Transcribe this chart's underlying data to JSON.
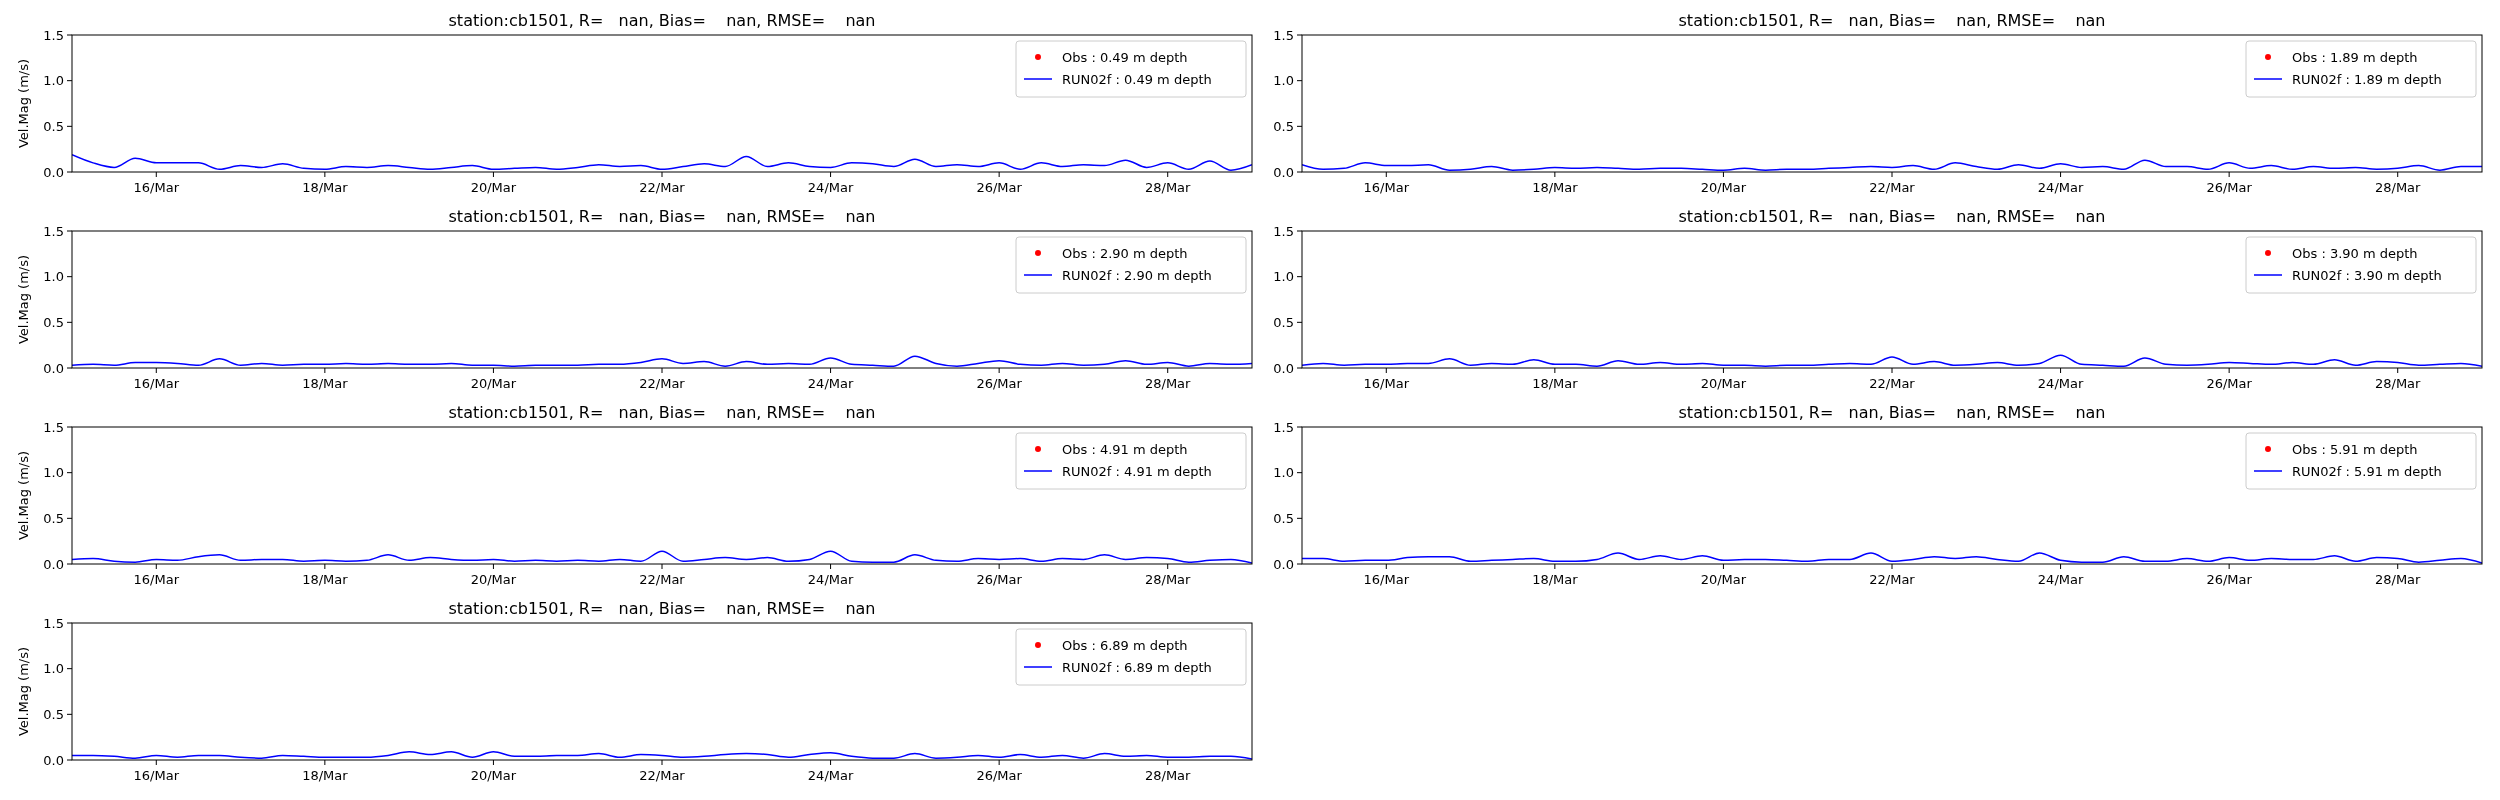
{
  "chart_data": [
    {
      "type": "line",
      "title": "station:cb1501, R=   nan, Bias=    nan, RMSE=    nan",
      "ylabel": "Vel.Mag (m/s)",
      "xlim": [
        "--03-15",
        "--03-29"
      ],
      "ylim": [
        0,
        1.5
      ],
      "yticks": [
        {
          "value": 0,
          "label": "0.0"
        },
        {
          "value": 0.5,
          "label": "0.5"
        },
        {
          "value": 1,
          "label": "1.0"
        },
        {
          "value": 1.5,
          "label": "1.5"
        }
      ],
      "xticks": [
        {
          "value": "--03-16",
          "label": "16/Mar"
        },
        {
          "value": "--03-18",
          "label": "18/Mar"
        },
        {
          "value": "--03-20",
          "label": "20/Mar"
        },
        {
          "value": "--03-22",
          "label": "22/Mar"
        },
        {
          "value": "--03-24",
          "label": "24/Mar"
        },
        {
          "value": "--03-26",
          "label": "26/Mar"
        },
        {
          "value": "--03-28",
          "label": "28/Mar"
        }
      ],
      "legend": "top right",
      "x": [
        "--03-15T00:00",
        "--03-15T06:00",
        "--03-15T12:00",
        "--03-15T18:00",
        "--03-16T00:00",
        "--03-16T06:00",
        "--03-16T12:00",
        "--03-16T18:00",
        "--03-17T00:00",
        "--03-17T06:00",
        "--03-17T12:00",
        "--03-17T18:00",
        "--03-18T00:00",
        "--03-18T06:00",
        "--03-18T12:00",
        "--03-18T18:00",
        "--03-19T00:00",
        "--03-19T06:00",
        "--03-19T12:00",
        "--03-19T18:00",
        "--03-20T00:00",
        "--03-20T06:00",
        "--03-20T12:00",
        "--03-20T18:00",
        "--03-21T00:00",
        "--03-21T06:00",
        "--03-21T12:00",
        "--03-21T18:00",
        "--03-22T00:00",
        "--03-22T06:00",
        "--03-22T12:00",
        "--03-22T18:00",
        "--03-23T00:00",
        "--03-23T06:00",
        "--03-23T12:00",
        "--03-23T18:00",
        "--03-24T00:00",
        "--03-24T06:00",
        "--03-24T12:00",
        "--03-24T18:00",
        "--03-25T00:00",
        "--03-25T06:00",
        "--03-25T12:00",
        "--03-25T18:00",
        "--03-26T00:00",
        "--03-26T06:00",
        "--03-26T12:00",
        "--03-26T18:00",
        "--03-27T00:00",
        "--03-27T06:00",
        "--03-27T12:00",
        "--03-27T18:00",
        "--03-28T00:00",
        "--03-28T06:00",
        "--03-28T12:00",
        "--03-28T18:00",
        "--03-29T00:00"
      ],
      "series": [
        {
          "name": "Obs : 0.49 m depth",
          "color": "#ff0000",
          "type": "scatter",
          "marker": "circle",
          "values": [
            null,
            null,
            null,
            null,
            null,
            null,
            null,
            null,
            null,
            null,
            null,
            null,
            null,
            null,
            null,
            null,
            null,
            null,
            null,
            null,
            null,
            null,
            null,
            null,
            null,
            null,
            null,
            null,
            null,
            null,
            null,
            null,
            null,
            null,
            null,
            null,
            null,
            null,
            null,
            null,
            null,
            null,
            null,
            null,
            null,
            null,
            null,
            null,
            null,
            null,
            null,
            null,
            null,
            null,
            null,
            null,
            null
          ]
        },
        {
          "name": "RUN02f : 0.49 m depth",
          "color": "#0000ff",
          "values": [
            0.19,
            0.1,
            0.05,
            0.15,
            0.1,
            0.1,
            0.1,
            0.03,
            0.07,
            0.05,
            0.09,
            0.04,
            0.03,
            0.06,
            0.05,
            0.07,
            0.05,
            0.03,
            0.05,
            0.07,
            0.03,
            0.04,
            0.05,
            0.03,
            0.05,
            0.08,
            0.06,
            0.07,
            0.03,
            0.06,
            0.09,
            0.06,
            0.17,
            0.06,
            0.1,
            0.06,
            0.05,
            0.1,
            0.09,
            0.06,
            0.14,
            0.06,
            0.08,
            0.06,
            0.1,
            0.03,
            0.1,
            0.06,
            0.08,
            0.07,
            0.13,
            0.05,
            0.1,
            0.03,
            0.12,
            0.02,
            0.08
          ]
        }
      ]
    },
    {
      "type": "line",
      "title": "station:cb1501, R=   nan, Bias=    nan, RMSE=    nan",
      "xlim": [
        "--03-15",
        "--03-29"
      ],
      "ylim": [
        0,
        1.5
      ],
      "yticks": [
        {
          "value": 0,
          "label": "0.0"
        },
        {
          "value": 0.5,
          "label": "0.5"
        },
        {
          "value": 1,
          "label": "1.0"
        },
        {
          "value": 1.5,
          "label": "1.5"
        }
      ],
      "xticks": [
        {
          "value": "--03-16",
          "label": "16/Mar"
        },
        {
          "value": "--03-18",
          "label": "18/Mar"
        },
        {
          "value": "--03-20",
          "label": "20/Mar"
        },
        {
          "value": "--03-22",
          "label": "22/Mar"
        },
        {
          "value": "--03-24",
          "label": "24/Mar"
        },
        {
          "value": "--03-26",
          "label": "26/Mar"
        },
        {
          "value": "--03-28",
          "label": "28/Mar"
        }
      ],
      "legend": "top right",
      "x": [
        "--03-15T00:00",
        "--03-15T06:00",
        "--03-15T12:00",
        "--03-15T18:00",
        "--03-16T00:00",
        "--03-16T06:00",
        "--03-16T12:00",
        "--03-16T18:00",
        "--03-17T00:00",
        "--03-17T06:00",
        "--03-17T12:00",
        "--03-17T18:00",
        "--03-18T00:00",
        "--03-18T06:00",
        "--03-18T12:00",
        "--03-18T18:00",
        "--03-19T00:00",
        "--03-19T06:00",
        "--03-19T12:00",
        "--03-19T18:00",
        "--03-20T00:00",
        "--03-20T06:00",
        "--03-20T12:00",
        "--03-20T18:00",
        "--03-21T00:00",
        "--03-21T06:00",
        "--03-21T12:00",
        "--03-21T18:00",
        "--03-22T00:00",
        "--03-22T06:00",
        "--03-22T12:00",
        "--03-22T18:00",
        "--03-23T00:00",
        "--03-23T06:00",
        "--03-23T12:00",
        "--03-23T18:00",
        "--03-24T00:00",
        "--03-24T06:00",
        "--03-24T12:00",
        "--03-24T18:00",
        "--03-25T00:00",
        "--03-25T06:00",
        "--03-25T12:00",
        "--03-25T18:00",
        "--03-26T00:00",
        "--03-26T06:00",
        "--03-26T12:00",
        "--03-26T18:00",
        "--03-27T00:00",
        "--03-27T06:00",
        "--03-27T12:00",
        "--03-27T18:00",
        "--03-28T00:00",
        "--03-28T06:00",
        "--03-28T12:00",
        "--03-28T18:00",
        "--03-29T00:00"
      ],
      "series": [
        {
          "name": "Obs : 1.89 m depth",
          "color": "#ff0000",
          "type": "scatter",
          "marker": "circle",
          "values": [
            null,
            null,
            null,
            null,
            null,
            null,
            null,
            null,
            null,
            null,
            null,
            null,
            null,
            null,
            null,
            null,
            null,
            null,
            null,
            null,
            null,
            null,
            null,
            null,
            null,
            null,
            null,
            null,
            null,
            null,
            null,
            null,
            null,
            null,
            null,
            null,
            null,
            null,
            null,
            null,
            null,
            null,
            null,
            null,
            null,
            null,
            null,
            null,
            null,
            null,
            null,
            null,
            null,
            null,
            null,
            null,
            null
          ]
        },
        {
          "name": "RUN02f : 1.89 m depth",
          "color": "#0000ff",
          "values": [
            0.08,
            0.03,
            0.04,
            0.1,
            0.07,
            0.07,
            0.08,
            0.02,
            0.03,
            0.06,
            0.02,
            0.03,
            0.05,
            0.04,
            0.05,
            0.04,
            0.03,
            0.04,
            0.04,
            0.03,
            0.02,
            0.04,
            0.02,
            0.03,
            0.03,
            0.04,
            0.05,
            0.06,
            0.05,
            0.07,
            0.03,
            0.1,
            0.06,
            0.03,
            0.08,
            0.04,
            0.09,
            0.05,
            0.06,
            0.03,
            0.13,
            0.06,
            0.06,
            0.03,
            0.1,
            0.04,
            0.07,
            0.03,
            0.06,
            0.04,
            0.05,
            0.03,
            0.04,
            0.07,
            0.02,
            0.06,
            0.06
          ]
        }
      ]
    },
    {
      "type": "line",
      "title": "station:cb1501, R=   nan, Bias=    nan, RMSE=    nan",
      "ylabel": "Vel.Mag (m/s)",
      "xlim": [
        "--03-15",
        "--03-29"
      ],
      "ylim": [
        0,
        1.5
      ],
      "yticks": [
        {
          "value": 0,
          "label": "0.0"
        },
        {
          "value": 0.5,
          "label": "0.5"
        },
        {
          "value": 1,
          "label": "1.0"
        },
        {
          "value": 1.5,
          "label": "1.5"
        }
      ],
      "xticks": [
        {
          "value": "--03-16",
          "label": "16/Mar"
        },
        {
          "value": "--03-18",
          "label": "18/Mar"
        },
        {
          "value": "--03-20",
          "label": "20/Mar"
        },
        {
          "value": "--03-22",
          "label": "22/Mar"
        },
        {
          "value": "--03-24",
          "label": "24/Mar"
        },
        {
          "value": "--03-26",
          "label": "26/Mar"
        },
        {
          "value": "--03-28",
          "label": "28/Mar"
        }
      ],
      "legend": "top right",
      "x": [
        "--03-15T00:00",
        "--03-15T06:00",
        "--03-15T12:00",
        "--03-15T18:00",
        "--03-16T00:00",
        "--03-16T06:00",
        "--03-16T12:00",
        "--03-16T18:00",
        "--03-17T00:00",
        "--03-17T06:00",
        "--03-17T12:00",
        "--03-17T18:00",
        "--03-18T00:00",
        "--03-18T06:00",
        "--03-18T12:00",
        "--03-18T18:00",
        "--03-19T00:00",
        "--03-19T06:00",
        "--03-19T12:00",
        "--03-19T18:00",
        "--03-20T00:00",
        "--03-20T06:00",
        "--03-20T12:00",
        "--03-20T18:00",
        "--03-21T00:00",
        "--03-21T06:00",
        "--03-21T12:00",
        "--03-21T18:00",
        "--03-22T00:00",
        "--03-22T06:00",
        "--03-22T12:00",
        "--03-22T18:00",
        "--03-23T00:00",
        "--03-23T06:00",
        "--03-23T12:00",
        "--03-23T18:00",
        "--03-24T00:00",
        "--03-24T06:00",
        "--03-24T12:00",
        "--03-24T18:00",
        "--03-25T00:00",
        "--03-25T06:00",
        "--03-25T12:00",
        "--03-25T18:00",
        "--03-26T00:00",
        "--03-26T06:00",
        "--03-26T12:00",
        "--03-26T18:00",
        "--03-27T00:00",
        "--03-27T06:00",
        "--03-27T12:00",
        "--03-27T18:00",
        "--03-28T00:00",
        "--03-28T06:00",
        "--03-28T12:00",
        "--03-28T18:00",
        "--03-29T00:00"
      ],
      "series": [
        {
          "name": "Obs : 2.90 m depth",
          "color": "#ff0000",
          "type": "scatter",
          "marker": "circle",
          "values": [
            null,
            null,
            null,
            null,
            null,
            null,
            null,
            null,
            null,
            null,
            null,
            null,
            null,
            null,
            null,
            null,
            null,
            null,
            null,
            null,
            null,
            null,
            null,
            null,
            null,
            null,
            null,
            null,
            null,
            null,
            null,
            null,
            null,
            null,
            null,
            null,
            null,
            null,
            null,
            null,
            null,
            null,
            null,
            null,
            null,
            null,
            null,
            null,
            null,
            null,
            null,
            null,
            null,
            null,
            null,
            null,
            null
          ]
        },
        {
          "name": "RUN02f : 2.90 m depth",
          "color": "#0000ff",
          "values": [
            0.03,
            0.04,
            0.03,
            0.06,
            0.06,
            0.05,
            0.03,
            0.1,
            0.03,
            0.05,
            0.03,
            0.04,
            0.04,
            0.05,
            0.04,
            0.05,
            0.04,
            0.04,
            0.05,
            0.03,
            0.03,
            0.02,
            0.03,
            0.03,
            0.03,
            0.04,
            0.04,
            0.06,
            0.1,
            0.05,
            0.07,
            0.02,
            0.07,
            0.04,
            0.05,
            0.04,
            0.11,
            0.04,
            0.03,
            0.02,
            0.13,
            0.05,
            0.02,
            0.05,
            0.08,
            0.04,
            0.03,
            0.05,
            0.03,
            0.04,
            0.08,
            0.04,
            0.06,
            0.02,
            0.05,
            0.04,
            0.05
          ]
        }
      ]
    },
    {
      "type": "line",
      "title": "station:cb1501, R=   nan, Bias=    nan, RMSE=    nan",
      "xlim": [
        "--03-15",
        "--03-29"
      ],
      "ylim": [
        0,
        1.5
      ],
      "yticks": [
        {
          "value": 0,
          "label": "0.0"
        },
        {
          "value": 0.5,
          "label": "0.5"
        },
        {
          "value": 1,
          "label": "1.0"
        },
        {
          "value": 1.5,
          "label": "1.5"
        }
      ],
      "xticks": [
        {
          "value": "--03-16",
          "label": "16/Mar"
        },
        {
          "value": "--03-18",
          "label": "18/Mar"
        },
        {
          "value": "--03-20",
          "label": "20/Mar"
        },
        {
          "value": "--03-22",
          "label": "22/Mar"
        },
        {
          "value": "--03-24",
          "label": "24/Mar"
        },
        {
          "value": "--03-26",
          "label": "26/Mar"
        },
        {
          "value": "--03-28",
          "label": "28/Mar"
        }
      ],
      "legend": "top right",
      "x": [
        "--03-15T00:00",
        "--03-15T06:00",
        "--03-15T12:00",
        "--03-15T18:00",
        "--03-16T00:00",
        "--03-16T06:00",
        "--03-16T12:00",
        "--03-16T18:00",
        "--03-17T00:00",
        "--03-17T06:00",
        "--03-17T12:00",
        "--03-17T18:00",
        "--03-18T00:00",
        "--03-18T06:00",
        "--03-18T12:00",
        "--03-18T18:00",
        "--03-19T00:00",
        "--03-19T06:00",
        "--03-19T12:00",
        "--03-19T18:00",
        "--03-20T00:00",
        "--03-20T06:00",
        "--03-20T12:00",
        "--03-20T18:00",
        "--03-21T00:00",
        "--03-21T06:00",
        "--03-21T12:00",
        "--03-21T18:00",
        "--03-22T00:00",
        "--03-22T06:00",
        "--03-22T12:00",
        "--03-22T18:00",
        "--03-23T00:00",
        "--03-23T06:00",
        "--03-23T12:00",
        "--03-23T18:00",
        "--03-24T00:00",
        "--03-24T06:00",
        "--03-24T12:00",
        "--03-24T18:00",
        "--03-25T00:00",
        "--03-25T06:00",
        "--03-25T12:00",
        "--03-25T18:00",
        "--03-26T00:00",
        "--03-26T06:00",
        "--03-26T12:00",
        "--03-26T18:00",
        "--03-27T00:00",
        "--03-27T06:00",
        "--03-27T12:00",
        "--03-27T18:00",
        "--03-28T00:00",
        "--03-28T06:00",
        "--03-28T12:00",
        "--03-28T18:00",
        "--03-29T00:00"
      ],
      "series": [
        {
          "name": "Obs : 3.90 m depth",
          "color": "#ff0000",
          "type": "scatter",
          "marker": "circle",
          "values": [
            null,
            null,
            null,
            null,
            null,
            null,
            null,
            null,
            null,
            null,
            null,
            null,
            null,
            null,
            null,
            null,
            null,
            null,
            null,
            null,
            null,
            null,
            null,
            null,
            null,
            null,
            null,
            null,
            null,
            null,
            null,
            null,
            null,
            null,
            null,
            null,
            null,
            null,
            null,
            null,
            null,
            null,
            null,
            null,
            null,
            null,
            null,
            null,
            null,
            null,
            null,
            null,
            null,
            null,
            null,
            null,
            null
          ]
        },
        {
          "name": "RUN02f : 3.90 m depth",
          "color": "#0000ff",
          "values": [
            0.03,
            0.05,
            0.03,
            0.04,
            0.04,
            0.05,
            0.05,
            0.1,
            0.03,
            0.05,
            0.04,
            0.09,
            0.04,
            0.04,
            0.02,
            0.08,
            0.04,
            0.06,
            0.04,
            0.05,
            0.03,
            0.03,
            0.02,
            0.03,
            0.03,
            0.04,
            0.05,
            0.04,
            0.12,
            0.04,
            0.07,
            0.03,
            0.04,
            0.06,
            0.03,
            0.05,
            0.14,
            0.04,
            0.03,
            0.02,
            0.11,
            0.04,
            0.03,
            0.04,
            0.06,
            0.05,
            0.04,
            0.06,
            0.04,
            0.09,
            0.03,
            0.07,
            0.06,
            0.03,
            0.04,
            0.05,
            0.02
          ]
        }
      ]
    },
    {
      "type": "line",
      "title": "station:cb1501, R=   nan, Bias=    nan, RMSE=    nan",
      "ylabel": "Vel.Mag (m/s)",
      "xlim": [
        "--03-15",
        "--03-29"
      ],
      "ylim": [
        0,
        1.5
      ],
      "yticks": [
        {
          "value": 0,
          "label": "0.0"
        },
        {
          "value": 0.5,
          "label": "0.5"
        },
        {
          "value": 1,
          "label": "1.0"
        },
        {
          "value": 1.5,
          "label": "1.5"
        }
      ],
      "xticks": [
        {
          "value": "--03-16",
          "label": "16/Mar"
        },
        {
          "value": "--03-18",
          "label": "18/Mar"
        },
        {
          "value": "--03-20",
          "label": "20/Mar"
        },
        {
          "value": "--03-22",
          "label": "22/Mar"
        },
        {
          "value": "--03-24",
          "label": "24/Mar"
        },
        {
          "value": "--03-26",
          "label": "26/Mar"
        },
        {
          "value": "--03-28",
          "label": "28/Mar"
        }
      ],
      "legend": "top right",
      "x": [
        "--03-15T00:00",
        "--03-15T06:00",
        "--03-15T12:00",
        "--03-15T18:00",
        "--03-16T00:00",
        "--03-16T06:00",
        "--03-16T12:00",
        "--03-16T18:00",
        "--03-17T00:00",
        "--03-17T06:00",
        "--03-17T12:00",
        "--03-17T18:00",
        "--03-18T00:00",
        "--03-18T06:00",
        "--03-18T12:00",
        "--03-18T18:00",
        "--03-19T00:00",
        "--03-19T06:00",
        "--03-19T12:00",
        "--03-19T18:00",
        "--03-20T00:00",
        "--03-20T06:00",
        "--03-20T12:00",
        "--03-20T18:00",
        "--03-21T00:00",
        "--03-21T06:00",
        "--03-21T12:00",
        "--03-21T18:00",
        "--03-22T00:00",
        "--03-22T06:00",
        "--03-22T12:00",
        "--03-22T18:00",
        "--03-23T00:00",
        "--03-23T06:00",
        "--03-23T12:00",
        "--03-23T18:00",
        "--03-24T00:00",
        "--03-24T06:00",
        "--03-24T12:00",
        "--03-24T18:00",
        "--03-25T00:00",
        "--03-25T06:00",
        "--03-25T12:00",
        "--03-25T18:00",
        "--03-26T00:00",
        "--03-26T06:00",
        "--03-26T12:00",
        "--03-26T18:00",
        "--03-27T00:00",
        "--03-27T06:00",
        "--03-27T12:00",
        "--03-27T18:00",
        "--03-28T00:00",
        "--03-28T06:00",
        "--03-28T12:00",
        "--03-28T18:00",
        "--03-29T00:00"
      ],
      "series": [
        {
          "name": "Obs : 4.91 m depth",
          "color": "#ff0000",
          "type": "scatter",
          "marker": "circle",
          "values": [
            null,
            null,
            null,
            null,
            null,
            null,
            null,
            null,
            null,
            null,
            null,
            null,
            null,
            null,
            null,
            null,
            null,
            null,
            null,
            null,
            null,
            null,
            null,
            null,
            null,
            null,
            null,
            null,
            null,
            null,
            null,
            null,
            null,
            null,
            null,
            null,
            null,
            null,
            null,
            null,
            null,
            null,
            null,
            null,
            null,
            null,
            null,
            null,
            null,
            null,
            null,
            null,
            null,
            null,
            null,
            null,
            null
          ]
        },
        {
          "name": "RUN02f : 4.91 m depth",
          "color": "#0000ff",
          "values": [
            0.05,
            0.06,
            0.03,
            0.02,
            0.05,
            0.04,
            0.08,
            0.1,
            0.04,
            0.05,
            0.05,
            0.03,
            0.04,
            0.03,
            0.04,
            0.1,
            0.04,
            0.07,
            0.05,
            0.04,
            0.05,
            0.03,
            0.04,
            0.03,
            0.04,
            0.03,
            0.05,
            0.03,
            0.14,
            0.03,
            0.05,
            0.07,
            0.05,
            0.07,
            0.03,
            0.05,
            0.14,
            0.03,
            0.02,
            0.02,
            0.1,
            0.04,
            0.03,
            0.06,
            0.05,
            0.06,
            0.03,
            0.06,
            0.05,
            0.1,
            0.05,
            0.07,
            0.06,
            0.02,
            0.04,
            0.05,
            0.01
          ]
        }
      ]
    },
    {
      "type": "line",
      "title": "station:cb1501, R=   nan, Bias=    nan, RMSE=    nan",
      "xlim": [
        "--03-15",
        "--03-29"
      ],
      "ylim": [
        0,
        1.5
      ],
      "yticks": [
        {
          "value": 0,
          "label": "0.0"
        },
        {
          "value": 0.5,
          "label": "0.5"
        },
        {
          "value": 1,
          "label": "1.0"
        },
        {
          "value": 1.5,
          "label": "1.5"
        }
      ],
      "xticks": [
        {
          "value": "--03-16",
          "label": "16/Mar"
        },
        {
          "value": "--03-18",
          "label": "18/Mar"
        },
        {
          "value": "--03-20",
          "label": "20/Mar"
        },
        {
          "value": "--03-22",
          "label": "22/Mar"
        },
        {
          "value": "--03-24",
          "label": "24/Mar"
        },
        {
          "value": "--03-26",
          "label": "26/Mar"
        },
        {
          "value": "--03-28",
          "label": "28/Mar"
        }
      ],
      "legend": "top right",
      "x": [
        "--03-15T00:00",
        "--03-15T06:00",
        "--03-15T12:00",
        "--03-15T18:00",
        "--03-16T00:00",
        "--03-16T06:00",
        "--03-16T12:00",
        "--03-16T18:00",
        "--03-17T00:00",
        "--03-17T06:00",
        "--03-17T12:00",
        "--03-17T18:00",
        "--03-18T00:00",
        "--03-18T06:00",
        "--03-18T12:00",
        "--03-18T18:00",
        "--03-19T00:00",
        "--03-19T06:00",
        "--03-19T12:00",
        "--03-19T18:00",
        "--03-20T00:00",
        "--03-20T06:00",
        "--03-20T12:00",
        "--03-20T18:00",
        "--03-21T00:00",
        "--03-21T06:00",
        "--03-21T12:00",
        "--03-21T18:00",
        "--03-22T00:00",
        "--03-22T06:00",
        "--03-22T12:00",
        "--03-22T18:00",
        "--03-23T00:00",
        "--03-23T06:00",
        "--03-23T12:00",
        "--03-23T18:00",
        "--03-24T00:00",
        "--03-24T06:00",
        "--03-24T12:00",
        "--03-24T18:00",
        "--03-25T00:00",
        "--03-25T06:00",
        "--03-25T12:00",
        "--03-25T18:00",
        "--03-26T00:00",
        "--03-26T06:00",
        "--03-26T12:00",
        "--03-26T18:00",
        "--03-27T00:00",
        "--03-27T06:00",
        "--03-27T12:00",
        "--03-27T18:00",
        "--03-28T00:00",
        "--03-28T06:00",
        "--03-28T12:00",
        "--03-28T18:00",
        "--03-29T00:00"
      ],
      "series": [
        {
          "name": "Obs : 5.91 m depth",
          "color": "#ff0000",
          "type": "scatter",
          "marker": "circle",
          "values": [
            null,
            null,
            null,
            null,
            null,
            null,
            null,
            null,
            null,
            null,
            null,
            null,
            null,
            null,
            null,
            null,
            null,
            null,
            null,
            null,
            null,
            null,
            null,
            null,
            null,
            null,
            null,
            null,
            null,
            null,
            null,
            null,
            null,
            null,
            null,
            null,
            null,
            null,
            null,
            null,
            null,
            null,
            null,
            null,
            null,
            null,
            null,
            null,
            null,
            null,
            null,
            null,
            null,
            null,
            null,
            null,
            null
          ]
        },
        {
          "name": "RUN02f : 5.91 m depth",
          "color": "#0000ff",
          "values": [
            0.06,
            0.06,
            0.03,
            0.04,
            0.04,
            0.07,
            0.08,
            0.08,
            0.03,
            0.04,
            0.05,
            0.06,
            0.03,
            0.03,
            0.05,
            0.12,
            0.05,
            0.09,
            0.05,
            0.09,
            0.04,
            0.05,
            0.05,
            0.04,
            0.03,
            0.05,
            0.05,
            0.12,
            0.03,
            0.05,
            0.08,
            0.06,
            0.08,
            0.05,
            0.03,
            0.12,
            0.04,
            0.02,
            0.02,
            0.08,
            0.03,
            0.03,
            0.06,
            0.03,
            0.07,
            0.04,
            0.06,
            0.05,
            0.05,
            0.09,
            0.03,
            0.07,
            0.06,
            0.02,
            0.04,
            0.06,
            0.01
          ]
        }
      ]
    },
    {
      "type": "line",
      "title": "station:cb1501, R=   nan, Bias=    nan, RMSE=    nan",
      "ylabel": "Vel.Mag (m/s)",
      "xlim": [
        "--03-15",
        "--03-29"
      ],
      "ylim": [
        0,
        1.5
      ],
      "yticks": [
        {
          "value": 0,
          "label": "0.0"
        },
        {
          "value": 0.5,
          "label": "0.5"
        },
        {
          "value": 1,
          "label": "1.0"
        },
        {
          "value": 1.5,
          "label": "1.5"
        }
      ],
      "xticks": [
        {
          "value": "--03-16",
          "label": "16/Mar"
        },
        {
          "value": "--03-18",
          "label": "18/Mar"
        },
        {
          "value": "--03-20",
          "label": "20/Mar"
        },
        {
          "value": "--03-22",
          "label": "22/Mar"
        },
        {
          "value": "--03-24",
          "label": "24/Mar"
        },
        {
          "value": "--03-26",
          "label": "26/Mar"
        },
        {
          "value": "--03-28",
          "label": "28/Mar"
        }
      ],
      "legend": "top right",
      "x": [
        "--03-15T00:00",
        "--03-15T06:00",
        "--03-15T12:00",
        "--03-15T18:00",
        "--03-16T00:00",
        "--03-16T06:00",
        "--03-16T12:00",
        "--03-16T18:00",
        "--03-17T00:00",
        "--03-17T06:00",
        "--03-17T12:00",
        "--03-17T18:00",
        "--03-18T00:00",
        "--03-18T06:00",
        "--03-18T12:00",
        "--03-18T18:00",
        "--03-19T00:00",
        "--03-19T06:00",
        "--03-19T12:00",
        "--03-19T18:00",
        "--03-20T00:00",
        "--03-20T06:00",
        "--03-20T12:00",
        "--03-20T18:00",
        "--03-21T00:00",
        "--03-21T06:00",
        "--03-21T12:00",
        "--03-21T18:00",
        "--03-22T00:00",
        "--03-22T06:00",
        "--03-22T12:00",
        "--03-22T18:00",
        "--03-23T00:00",
        "--03-23T06:00",
        "--03-23T12:00",
        "--03-23T18:00",
        "--03-24T00:00",
        "--03-24T06:00",
        "--03-24T12:00",
        "--03-24T18:00",
        "--03-25T00:00",
        "--03-25T06:00",
        "--03-25T12:00",
        "--03-25T18:00",
        "--03-26T00:00",
        "--03-26T06:00",
        "--03-26T12:00",
        "--03-26T18:00",
        "--03-27T00:00",
        "--03-27T06:00",
        "--03-27T12:00",
        "--03-27T18:00",
        "--03-28T00:00",
        "--03-28T06:00",
        "--03-28T12:00",
        "--03-28T18:00",
        "--03-29T00:00"
      ],
      "series": [
        {
          "name": "Obs : 6.89 m depth",
          "color": "#ff0000",
          "type": "scatter",
          "marker": "circle",
          "values": [
            null,
            null,
            null,
            null,
            null,
            null,
            null,
            null,
            null,
            null,
            null,
            null,
            null,
            null,
            null,
            null,
            null,
            null,
            null,
            null,
            null,
            null,
            null,
            null,
            null,
            null,
            null,
            null,
            null,
            null,
            null,
            null,
            null,
            null,
            null,
            null,
            null,
            null,
            null,
            null,
            null,
            null,
            null,
            null,
            null,
            null,
            null,
            null,
            null,
            null,
            null,
            null,
            null,
            null,
            null,
            null,
            null
          ]
        },
        {
          "name": "RUN02f : 6.89 m depth",
          "color": "#0000ff",
          "values": [
            0.05,
            0.05,
            0.04,
            0.02,
            0.05,
            0.03,
            0.05,
            0.05,
            0.03,
            0.02,
            0.05,
            0.04,
            0.03,
            0.03,
            0.03,
            0.05,
            0.09,
            0.06,
            0.09,
            0.03,
            0.09,
            0.04,
            0.04,
            0.05,
            0.05,
            0.07,
            0.03,
            0.06,
            0.05,
            0.03,
            0.04,
            0.06,
            0.07,
            0.06,
            0.03,
            0.06,
            0.08,
            0.04,
            0.02,
            0.02,
            0.07,
            0.02,
            0.03,
            0.05,
            0.03,
            0.06,
            0.03,
            0.05,
            0.02,
            0.07,
            0.04,
            0.05,
            0.03,
            0.03,
            0.04,
            0.04,
            0.01
          ]
        }
      ]
    }
  ]
}
